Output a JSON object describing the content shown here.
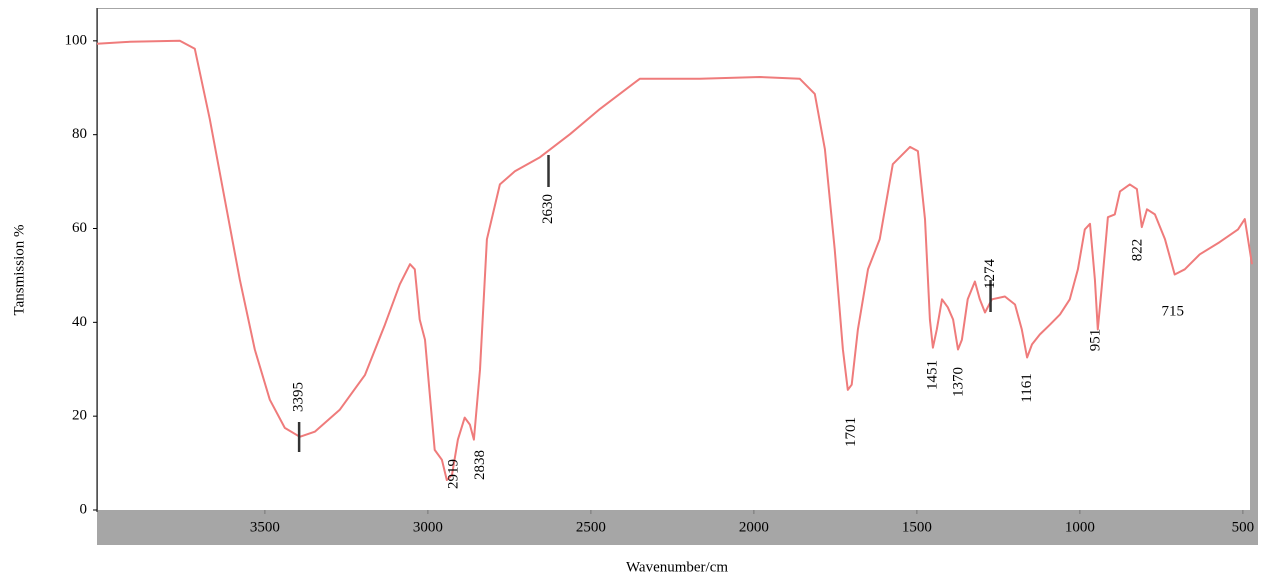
{
  "chart_data": {
    "type": "line",
    "xlabel": "Wavenumber/cm",
    "ylabel": "Tansmission %",
    "xlim": [
      4015,
      472
    ],
    "ylim": [
      0,
      107
    ],
    "xticks": [
      3500,
      3000,
      2500,
      2000,
      1500,
      1000,
      500
    ],
    "yticks": [
      0,
      20,
      40,
      60,
      80,
      100
    ],
    "series": [
      {
        "color": "#ef7b7b",
        "x": [
          4015,
          3914,
          3761,
          3715,
          3669,
          3623,
          3577,
          3531,
          3485,
          3439,
          3393,
          3347,
          3270,
          3193,
          3132,
          3086,
          3055,
          3040,
          3025,
          3009,
          2994,
          2979,
          2957,
          2942,
          2926,
          2908,
          2887,
          2871,
          2859,
          2840,
          2819,
          2779,
          2733,
          2656,
          2564,
          2472,
          2350,
          2166,
          1982,
          1859,
          1813,
          1782,
          1752,
          1727,
          1712,
          1700,
          1681,
          1650,
          1614,
          1574,
          1521,
          1497,
          1475,
          1460,
          1451,
          1439,
          1423,
          1405,
          1389,
          1374,
          1362,
          1344,
          1322,
          1307,
          1291,
          1270,
          1230,
          1199,
          1178,
          1162,
          1147,
          1123,
          1092,
          1061,
          1031,
          1006,
          985,
          969,
          954,
          945,
          933,
          914,
          893,
          877,
          847,
          825,
          810,
          794,
          770,
          739,
          709,
          678,
          632,
          571,
          515,
          494,
          472
        ],
        "values": [
          99.4,
          99.8,
          100,
          98.3,
          83.3,
          66.2,
          49.1,
          34.2,
          23.5,
          17.5,
          15.6,
          16.7,
          21.4,
          28.8,
          39.5,
          48.1,
          52.4,
          51.3,
          40.6,
          36.3,
          24.6,
          12.8,
          10.7,
          6.4,
          7.5,
          15.0,
          19.7,
          18.2,
          15.0,
          29.9,
          57.7,
          69.4,
          72.2,
          75.2,
          80.1,
          85.5,
          91.9,
          91.9,
          92.3,
          91.9,
          88.7,
          76.9,
          55.6,
          34.2,
          25.6,
          26.7,
          38.5,
          51.3,
          57.7,
          73.7,
          77.4,
          76.5,
          62.0,
          40.6,
          34.6,
          38.5,
          44.9,
          43.2,
          40.6,
          34.2,
          36.3,
          44.9,
          48.7,
          44.9,
          42.1,
          44.9,
          45.5,
          43.8,
          38.5,
          32.5,
          35.3,
          37.4,
          39.5,
          41.7,
          44.9,
          51.3,
          59.8,
          61.0,
          49.1,
          38.5,
          47.4,
          62.4,
          63.0,
          67.9,
          69.4,
          68.4,
          60.3,
          64.1,
          63.0,
          57.7,
          50.2,
          51.3,
          54.5,
          57.1,
          59.8,
          62.0,
          52.4
        ]
      }
    ],
    "peaks": [
      3395,
      2919,
      2838,
      2630,
      1701,
      1451,
      1370,
      1274,
      1161,
      951,
      822,
      715
    ]
  }
}
